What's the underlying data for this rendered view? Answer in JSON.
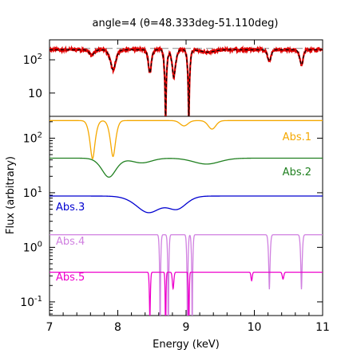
{
  "title": "angle=4 (θ=48.333deg-51.110deg)",
  "chart_data": [
    {
      "type": "line",
      "panel": "top",
      "xlim": [
        7,
        11
      ],
      "ylim_log10": [
        0.3,
        2.6
      ],
      "yscale": "log",
      "yticks": [
        {
          "value": 10,
          "label": "10"
        },
        {
          "value": 100,
          "label": "10",
          "exp": "2"
        }
      ],
      "reference_level": 220,
      "series": [
        {
          "color": "#e00000",
          "kind": "data",
          "continuum": 200
        },
        {
          "color": "#000000",
          "kind": "model",
          "continuum": 200
        }
      ],
      "lines": [
        {
          "e": 7.62,
          "w": 0.04,
          "d": 0.3
        },
        {
          "e": 7.93,
          "w": 0.05,
          "d": 0.75
        },
        {
          "e": 8.47,
          "w": 0.03,
          "d": 0.8
        },
        {
          "e": 8.7,
          "w": 0.025,
          "d": 0.995
        },
        {
          "e": 8.82,
          "w": 0.035,
          "d": 0.85
        },
        {
          "e": 9.04,
          "w": 0.025,
          "d": 0.995
        },
        {
          "e": 9.32,
          "w": 0.1,
          "d": 0.15
        },
        {
          "e": 10.22,
          "w": 0.03,
          "d": 0.55
        },
        {
          "e": 10.69,
          "w": 0.03,
          "d": 0.65
        }
      ]
    },
    {
      "type": "line",
      "panel": "bottom",
      "xlim": [
        7,
        11
      ],
      "ylim_log10": [
        -1.25,
        2.4
      ],
      "yscale": "log",
      "xticks": [
        "7",
        "8",
        "9",
        "10",
        "11"
      ],
      "yticks": [
        {
          "value": 0.1,
          "label": "10",
          "exp": "-1"
        },
        {
          "value": 1,
          "label": "10",
          "exp": "0"
        },
        {
          "value": 10,
          "label": "10",
          "exp": "1"
        },
        {
          "value": 100,
          "label": "10",
          "exp": "2"
        }
      ],
      "xlabel": "Energy (keV)",
      "ylabel": "Flux (arbitrary)",
      "series": [
        {
          "name": "Abs.1",
          "color": "#f5a800",
          "continuum": 210,
          "lines": [
            {
              "e": 7.63,
              "w": 0.05,
              "d": 0.8
            },
            {
              "e": 7.93,
              "w": 0.05,
              "d": 0.78
            },
            {
              "e": 8.97,
              "w": 0.06,
              "d": 0.2
            },
            {
              "e": 9.38,
              "w": 0.06,
              "d": 0.3
            }
          ]
        },
        {
          "name": "Abs.2",
          "color": "#208020",
          "continuum": 43,
          "lines": [
            {
              "e": 7.87,
              "w": 0.12,
              "d": 0.55
            },
            {
              "e": 8.35,
              "w": 0.15,
              "d": 0.18
            },
            {
              "e": 9.3,
              "w": 0.2,
              "d": 0.22
            }
          ]
        },
        {
          "name": "Abs.3",
          "color": "#0000d0",
          "continuum": 8.7,
          "lines": [
            {
              "e": 8.45,
              "w": 0.2,
              "d": 0.5
            },
            {
              "e": 8.87,
              "w": 0.15,
              "d": 0.4
            }
          ]
        },
        {
          "name": "Abs.4",
          "color": "#d080e0",
          "continuum": 1.7,
          "lines": [
            {
              "e": 8.62,
              "w": 0.012,
              "d": 0.999
            },
            {
              "e": 8.74,
              "w": 0.012,
              "d": 0.999
            },
            {
              "e": 9.02,
              "w": 0.012,
              "d": 0.999
            },
            {
              "e": 9.09,
              "w": 0.012,
              "d": 0.999
            },
            {
              "e": 10.22,
              "w": 0.015,
              "d": 0.9
            },
            {
              "e": 10.69,
              "w": 0.015,
              "d": 0.9
            }
          ]
        },
        {
          "name": "Abs.5",
          "color": "#ee00cc",
          "continuum": 0.35,
          "lines": [
            {
              "e": 8.47,
              "w": 0.01,
              "d": 0.86
            },
            {
              "e": 8.7,
              "w": 0.008,
              "d": 0.999
            },
            {
              "e": 8.81,
              "w": 0.012,
              "d": 0.5
            },
            {
              "e": 9.04,
              "w": 0.008,
              "d": 0.999
            },
            {
              "e": 9.96,
              "w": 0.01,
              "d": 0.3
            },
            {
              "e": 10.42,
              "w": 0.012,
              "d": 0.25
            }
          ]
        }
      ]
    }
  ]
}
